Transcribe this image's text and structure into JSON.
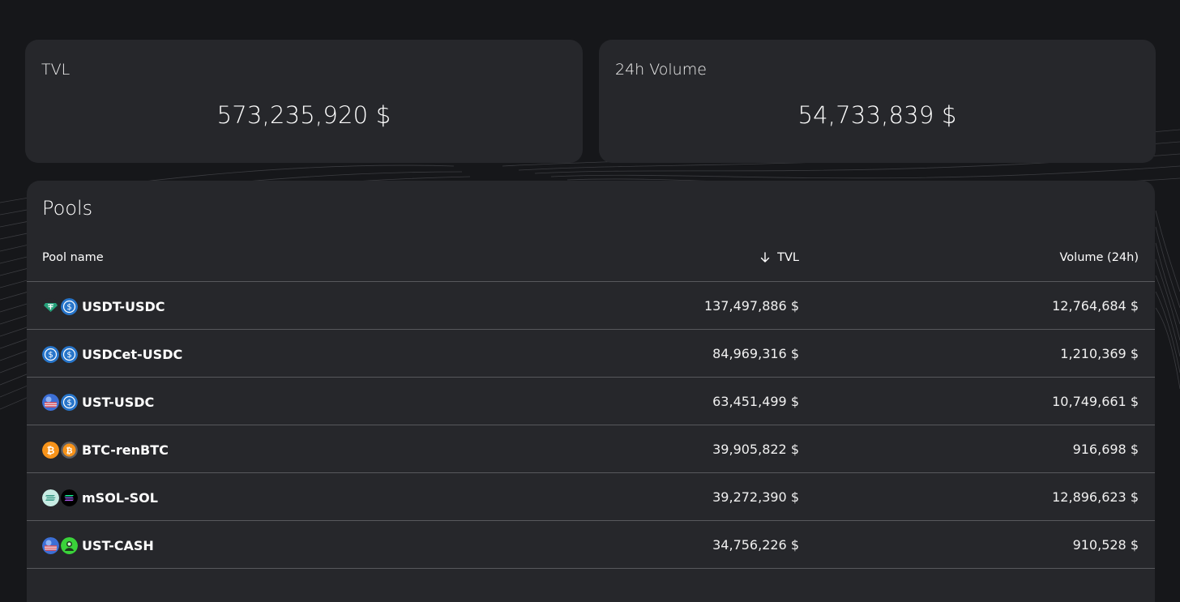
{
  "stats": {
    "tvl": {
      "title": "TVL",
      "value": "573,235,920 $"
    },
    "volume": {
      "title": "24h Volume",
      "value": "54,733,839 $"
    }
  },
  "pools": {
    "title": "Pools",
    "columns": {
      "name": "Pool name",
      "tvl": "TVL",
      "volume": "Volume (24h)"
    },
    "sort": {
      "column": "tvl",
      "direction": "descending",
      "icon": "arrow-down-icon"
    },
    "rows": [
      {
        "name": "USDT-USDC",
        "tvl": "137,497,886 $",
        "volume": "12,764,684 $",
        "icons": [
          "usdt-icon",
          "usdc-icon"
        ]
      },
      {
        "name": "USDCet-USDC",
        "tvl": "84,969,316 $",
        "volume": "1,210,369 $",
        "icons": [
          "usdc-icon",
          "usdc-icon"
        ]
      },
      {
        "name": "UST-USDC",
        "tvl": "63,451,499 $",
        "volume": "10,749,661 $",
        "icons": [
          "ust-icon",
          "usdc-icon"
        ]
      },
      {
        "name": "BTC-renBTC",
        "tvl": "39,905,822 $",
        "volume": "916,698 $",
        "icons": [
          "btc-icon",
          "renbtc-icon"
        ]
      },
      {
        "name": "mSOL-SOL",
        "tvl": "39,272,390 $",
        "volume": "12,896,623 $",
        "icons": [
          "msol-icon",
          "sol-icon"
        ]
      },
      {
        "name": "UST-CASH",
        "tvl": "34,756,226 $",
        "volume": "910,528 $",
        "icons": [
          "ust-icon",
          "cash-icon"
        ]
      }
    ]
  },
  "colors": {
    "background": "#16171a",
    "card": "#26272b",
    "divider": "#57585c",
    "usdc": "#2775ca",
    "usdt": "#26a17b",
    "btc": "#f7931a",
    "cash": "#3ad33a"
  }
}
